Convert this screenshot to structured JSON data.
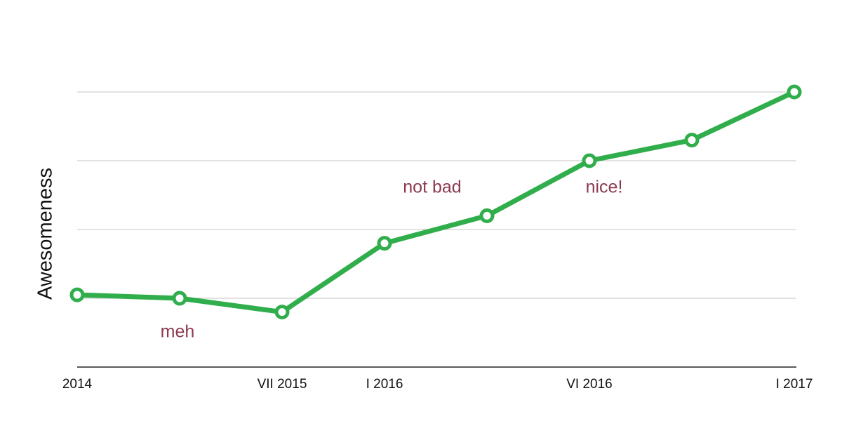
{
  "chart_data": {
    "type": "line",
    "y_label": "Awesomeness",
    "categories": [
      "2014",
      null,
      "VII 2015",
      "I 2016",
      null,
      "VI 2016",
      null,
      "I 2017"
    ],
    "values": [
      1.05,
      1.0,
      0.8,
      1.8,
      2.2,
      3.0,
      3.3,
      4.0
    ],
    "color": "#31ae4c",
    "ylim": [
      0,
      4
    ],
    "yticks": [
      1,
      2,
      3,
      4
    ],
    "grid": true,
    "annotations": [
      "meh",
      "not bad",
      "nice!"
    ],
    "annotation_color": "#8c3a4e"
  }
}
